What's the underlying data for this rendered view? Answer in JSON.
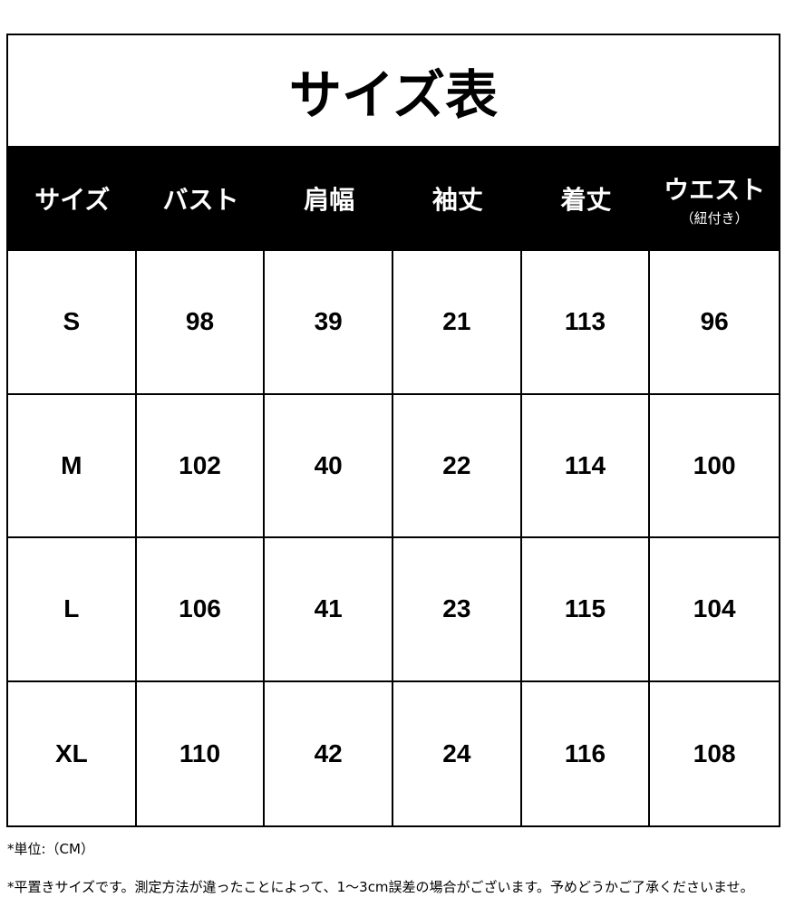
{
  "title": "サイズ表",
  "headers": [
    {
      "label": "サイズ"
    },
    {
      "label": "バスト"
    },
    {
      "label": "肩幅"
    },
    {
      "label": "袖丈"
    },
    {
      "label": "着丈"
    },
    {
      "label": "ウエスト",
      "sub": "（紐付き）"
    }
  ],
  "rows": [
    [
      "S",
      "98",
      "39",
      "21",
      "113",
      "96"
    ],
    [
      "M",
      "102",
      "40",
      "22",
      "114",
      "100"
    ],
    [
      "L",
      "106",
      "41",
      "23",
      "115",
      "104"
    ],
    [
      "XL",
      "110",
      "42",
      "24",
      "116",
      "108"
    ]
  ],
  "notes": {
    "unit": "*単位:（CM）",
    "disclaimer": "*平置きサイズです。測定方法が違ったことによって、1〜3cm誤差の場合がございます。予めどうかご了承くださいませ。"
  }
}
